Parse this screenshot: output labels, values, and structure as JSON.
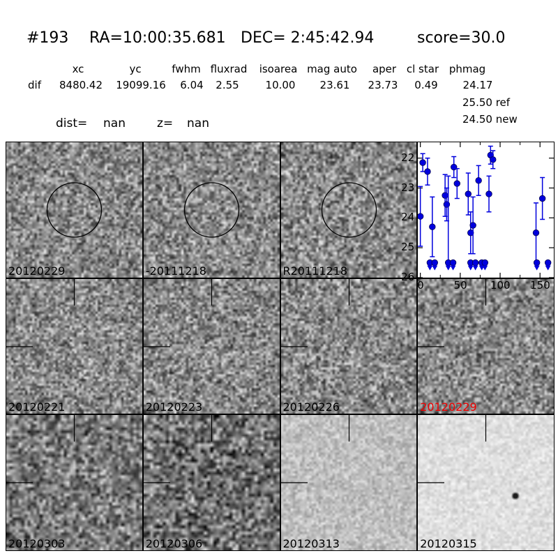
{
  "title": {
    "id": "#193",
    "ra": "RA=10:00:35.681",
    "dec": "DEC= 2:45:42.94",
    "score": "score=30.0"
  },
  "table": {
    "columns": [
      "xc",
      "yc",
      "fwhm",
      "fluxrad",
      "isoarea",
      "mag auto",
      "aper",
      "cl star",
      "phmag"
    ],
    "row_label": "dif",
    "values": [
      "8480.42",
      "19099.16",
      "6.04",
      "2.55",
      "10.00",
      "23.61",
      "23.73",
      "0.49",
      "24.17"
    ],
    "ref_mag": "25.50 ref",
    "new_mag": "24.50 new"
  },
  "info": {
    "dist_label": "dist=",
    "dist_value": "nan",
    "z_label": "z=",
    "z_value": "nan"
  },
  "colors": {
    "marker_blue": "#0000dd",
    "highlight_red": "#ee0000",
    "annotation_black": "#000000"
  },
  "cutouts": [
    {
      "label": "20120229",
      "row": 0,
      "col": 0,
      "marker": "circle",
      "tone": "mid"
    },
    {
      "label": "-20111218",
      "row": 0,
      "col": 1,
      "marker": "circle",
      "tone": "mid"
    },
    {
      "label": "R20111218",
      "row": 0,
      "col": 2,
      "marker": "circle",
      "tone": "mid"
    },
    {
      "label": "20120221",
      "row": 1,
      "col": 0,
      "marker": "crosshair",
      "tone": "mid"
    },
    {
      "label": "20120223",
      "row": 1,
      "col": 1,
      "marker": "crosshair",
      "tone": "mid"
    },
    {
      "label": "20120226",
      "row": 1,
      "col": 2,
      "marker": "crosshair",
      "tone": "mid"
    },
    {
      "label": "20120229",
      "row": 1,
      "col": 3,
      "marker": "crosshair",
      "tone": "mid",
      "label_color": "#ee0000"
    },
    {
      "label": "20120303",
      "row": 2,
      "col": 0,
      "marker": "crosshair",
      "tone": "dark"
    },
    {
      "label": "20120306",
      "row": 2,
      "col": 1,
      "marker": "crosshair",
      "tone": "darker"
    },
    {
      "label": "20120313",
      "row": 2,
      "col": 2,
      "marker": "crosshair",
      "tone": "light"
    },
    {
      "label": "20120315",
      "row": 2,
      "col": 3,
      "marker": "crosshair",
      "tone": "xlight",
      "spot": true
    }
  ],
  "chart_data": {
    "type": "scatter",
    "title": "",
    "xlabel": "",
    "ylabel": "",
    "xlim": [
      -3.2,
      167.3
    ],
    "ylim": [
      26.0,
      21.47
    ],
    "xticks": [
      0,
      50,
      100,
      150
    ],
    "xminorticks": [
      25,
      75,
      125
    ],
    "yticks": [
      22,
      23,
      24,
      25,
      26
    ],
    "grid": false,
    "legend": false,
    "series_name": "difference-image light curve (mag vs epoch, y inverted)",
    "marker_color": "#0000dd",
    "points": [
      {
        "x": 0,
        "mag": 23.95,
        "err": 1.0
      },
      {
        "x": 3,
        "mag": 22.15,
        "err": 0.3
      },
      {
        "x": 9,
        "mag": 22.45,
        "err": 0.45
      },
      {
        "x": 15,
        "mag": 24.3,
        "err": 1.0
      },
      {
        "x": 31,
        "mag": 23.25,
        "err": 0.7
      },
      {
        "x": 33,
        "mag": 23.55,
        "err": 0.55
      },
      {
        "x": 42,
        "mag": 22.3,
        "err": 0.35
      },
      {
        "x": 46,
        "mag": 22.85,
        "err": 0.5
      },
      {
        "x": 60,
        "mag": 23.2,
        "err": 0.7
      },
      {
        "x": 63,
        "mag": 24.5,
        "err": 0.7
      },
      {
        "x": 66,
        "mag": 24.25,
        "err": 0.95
      },
      {
        "x": 73,
        "mag": 22.75,
        "err": 0.5
      },
      {
        "x": 86,
        "mag": 23.2,
        "err": 0.6
      },
      {
        "x": 88,
        "mag": 21.9,
        "err": 0.3
      },
      {
        "x": 91,
        "mag": 22.05,
        "err": 0.3
      },
      {
        "x": 145,
        "mag": 24.5,
        "err": 1.0
      },
      {
        "x": 153,
        "mag": 23.35,
        "err": 0.7
      }
    ],
    "limit_mag": 25.5,
    "upper_limits": [
      {
        "x": 12
      },
      {
        "x": 18
      },
      {
        "x": 35,
        "err": 2.9
      },
      {
        "x": 41
      },
      {
        "x": 63
      },
      {
        "x": 69
      },
      {
        "x": 77
      },
      {
        "x": 81
      },
      {
        "x": 146
      },
      {
        "x": 160
      }
    ]
  }
}
